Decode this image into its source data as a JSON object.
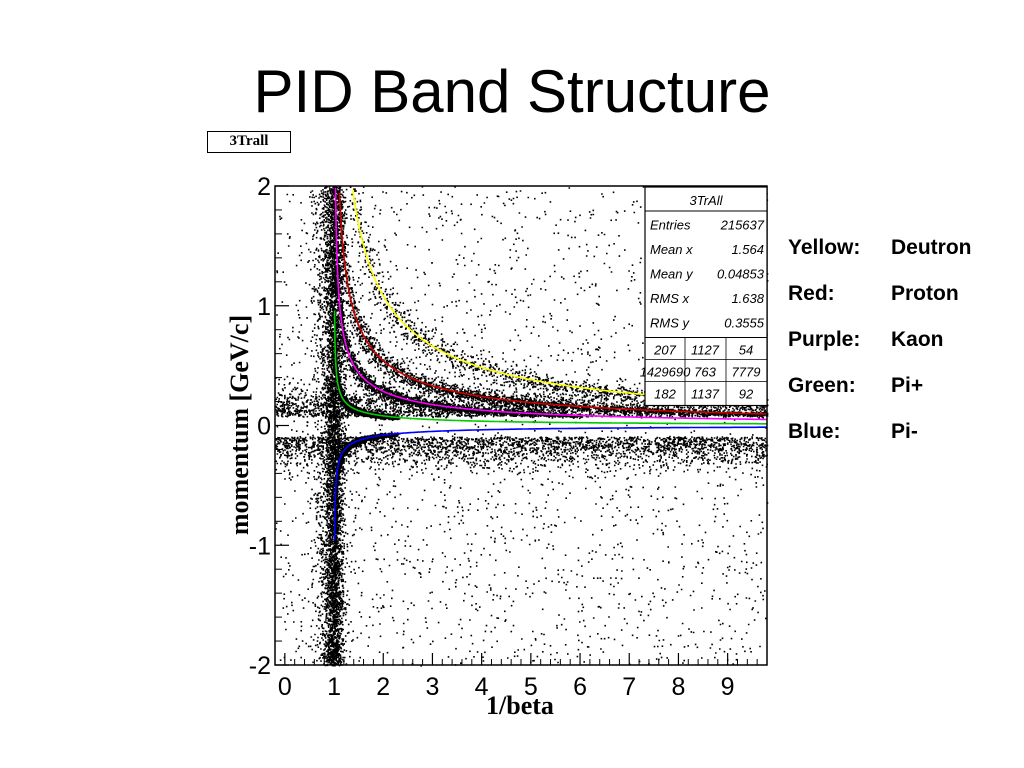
{
  "slide": {
    "title": "PID Band Structure",
    "histogram_tag": "3Trall"
  },
  "legend": [
    {
      "label": "Yellow:",
      "value": "Deutron",
      "color": "#ffff00"
    },
    {
      "label": "Red:",
      "value": "Proton",
      "color": "#ff0000"
    },
    {
      "label": "Purple:",
      "value": "Kaon",
      "color": "#ff00ff"
    },
    {
      "label": "Green:",
      "value": "Pi+",
      "color": "#00cc00"
    },
    {
      "label": "Blue:",
      "value": "Pi-",
      "color": "#0000ff"
    }
  ],
  "stats_box": {
    "title": "3TrAll",
    "rows": [
      {
        "label": "Entries",
        "value": "215637"
      },
      {
        "label": "Mean x",
        "value": "1.564"
      },
      {
        "label": "Mean y",
        "value": "0.04853"
      },
      {
        "label": "RMS x",
        "value": "1.638"
      },
      {
        "label": "RMS y",
        "value": "0.3555"
      }
    ],
    "overflow_rows": [
      [
        "207",
        "1127",
        "54"
      ],
      [
        "1429690",
        "763",
        "7779"
      ],
      [
        "182",
        "1137",
        "92"
      ]
    ]
  },
  "chart_data": {
    "type": "scatter",
    "title": "",
    "xlabel": "1/beta",
    "ylabel": "momentum [GeV/c]",
    "xlim": [
      -0.2,
      9.8
    ],
    "ylim": [
      -2,
      2
    ],
    "x_ticks": [
      "0",
      "1",
      "2",
      "3",
      "4",
      "5",
      "6",
      "7",
      "8",
      "9"
    ],
    "y_ticks": [
      "2",
      "1",
      "0",
      "-1",
      "-2"
    ],
    "point_color": "#000000",
    "band_masses_gev": {
      "Deutron": 1.876,
      "Proton": 0.938,
      "Kaon": 0.494,
      "Pi+": 0.1396,
      "Pi-": 0.1396
    },
    "curves": [
      {
        "name": "Deutron",
        "color": "#ffff00",
        "sign": 1
      },
      {
        "name": "Proton",
        "color": "#cc0000",
        "sign": 1
      },
      {
        "name": "Kaon",
        "color": "#ff00ff",
        "sign": 1
      },
      {
        "name": "Pi+",
        "color": "#00cc00",
        "sign": 1
      },
      {
        "name": "Pi-",
        "color": "#0000ff",
        "sign": -1
      }
    ]
  }
}
